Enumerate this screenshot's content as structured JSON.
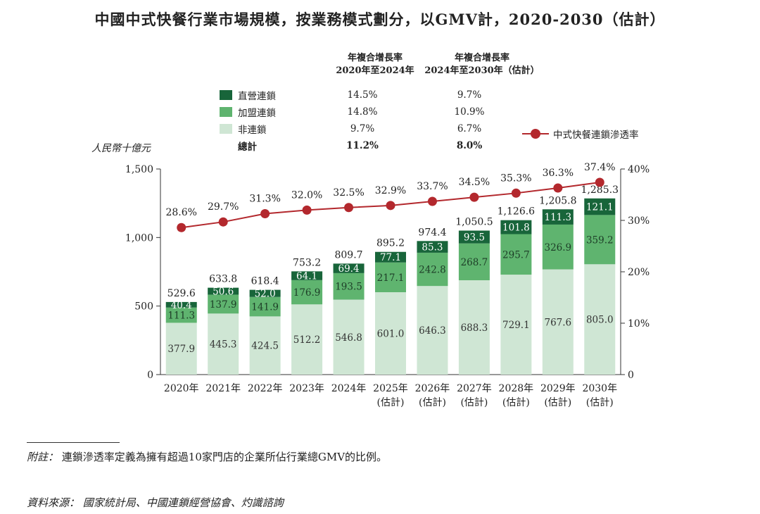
{
  "chart_data": {
    "type": "bar",
    "title": "中國中式快餐行業市場規模，按業務模式劃分，以GMV計，2020-2030（估計）",
    "y_unit": "人民幣十億元",
    "categories": [
      "2020年",
      "2021年",
      "2022年",
      "2023年",
      "2024年",
      "2025年",
      "2026年",
      "2027年",
      "2028年",
      "2029年",
      "2030年"
    ],
    "category_sub": [
      "",
      "",
      "",
      "",
      "",
      "(估計)",
      "(估計)",
      "(估計)",
      "(估計)",
      "(估計)",
      "(估計)"
    ],
    "series": [
      {
        "name": "非連鎖",
        "color": "#cfe6d4",
        "values": [
          377.9,
          445.3,
          424.5,
          512.2,
          546.8,
          601.0,
          646.3,
          688.3,
          729.1,
          767.6,
          805.0
        ]
      },
      {
        "name": "加盟連鎖",
        "color": "#5fb46f",
        "values": [
          111.3,
          137.9,
          141.9,
          176.9,
          193.5,
          217.1,
          242.8,
          268.7,
          295.7,
          326.9,
          359.2
        ]
      },
      {
        "name": "直營連鎖",
        "color": "#18653a",
        "values": [
          40.4,
          50.6,
          52.0,
          64.1,
          69.4,
          77.1,
          85.3,
          93.5,
          101.8,
          111.3,
          121.1
        ]
      }
    ],
    "value_labels": {
      "非連鎖": [
        "377.9",
        "445.3",
        "424.5",
        "512.2",
        "546.8",
        "601.0",
        "646.3",
        "688.3",
        "729.1",
        "767.6",
        "805.0"
      ],
      "加盟連鎖": [
        "111.3",
        "137.9",
        "141.9",
        "176.9",
        "193.5",
        "217.1",
        "242.8",
        "268.7",
        "295.7",
        "326.9",
        "359.2"
      ],
      "直營連鎖": [
        "40.4",
        "50.6",
        "52.0",
        "64.1",
        "69.4",
        "77.1",
        "85.3",
        "93.5",
        "101.8",
        "111.3",
        "121.1"
      ]
    },
    "totals": [
      529.6,
      633.8,
      618.4,
      753.2,
      809.7,
      895.2,
      974.4,
      1050.5,
      1126.6,
      1205.8,
      1285.3
    ],
    "total_labels": [
      "529.6",
      "633.8",
      "618.4",
      "753.2",
      "809.7",
      "895.2",
      "974.4",
      "1,050.5",
      "1,126.6",
      "1,205.8",
      "1,285.3"
    ],
    "line_series": {
      "name": "中式快餐連鎖滲透率",
      "color": "#b3282d",
      "values": [
        28.6,
        29.7,
        31.3,
        32.0,
        32.5,
        32.9,
        33.7,
        34.5,
        35.3,
        36.3,
        37.4
      ],
      "labels": [
        "28.6%",
        "29.7%",
        "31.3%",
        "32.0%",
        "32.5%",
        "32.9%",
        "33.7%",
        "34.5%",
        "35.3%",
        "36.3%",
        "37.4%"
      ]
    },
    "y_left": {
      "range": [
        0,
        1500
      ],
      "ticks": [
        0,
        500,
        1000,
        1500
      ],
      "tick_labels": [
        "0",
        "500",
        "1,000",
        "1,500"
      ]
    },
    "y_right": {
      "range": [
        0,
        40
      ],
      "ticks": [
        0,
        10,
        20,
        30,
        40
      ],
      "tick_labels": [
        "0",
        "10%",
        "20%",
        "30%",
        "40%"
      ]
    },
    "grid": false
  },
  "cagr_table": {
    "head1": [
      "年複合增長率",
      "2020年至2024年"
    ],
    "head2": [
      "年複合增長率",
      "2024年至2030年（估計）"
    ],
    "rows": [
      {
        "label": "直營連鎖",
        "color": "#18653a",
        "v1": "14.5%",
        "v2": "9.7%"
      },
      {
        "label": "加盟連鎖",
        "color": "#5fb46f",
        "v1": "14.8%",
        "v2": "10.9%"
      },
      {
        "label": "非連鎖",
        "color": "#cfe6d4",
        "v1": "9.7%",
        "v2": "6.7%"
      }
    ],
    "total": {
      "label": "總計",
      "v1": "11.2%",
      "v2": "8.0%"
    }
  },
  "footnote": {
    "prefix": "附註：",
    "text": "連鎖滲透率定義為擁有超過10家門店的企業所佔行業總GMV的比例。"
  },
  "source": {
    "prefix": "資料來源：",
    "text": "國家統計局、中國連鎖經營協會、灼識諮詢"
  }
}
